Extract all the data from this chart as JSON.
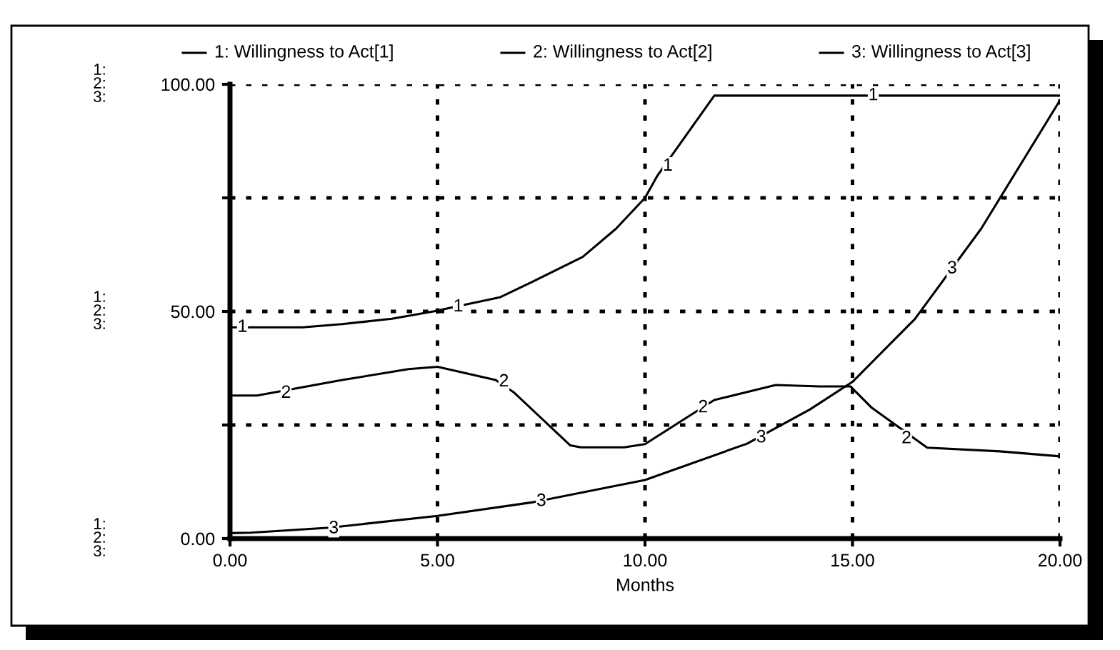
{
  "chart_data": {
    "type": "line",
    "xlabel": "Months",
    "xlim": [
      0,
      20
    ],
    "ylim": [
      0,
      100
    ],
    "xticks": [
      {
        "value": 0,
        "label": "0.00"
      },
      {
        "value": 5,
        "label": "5.00"
      },
      {
        "value": 10,
        "label": "10.00"
      },
      {
        "value": 15,
        "label": "15.00"
      },
      {
        "value": 20,
        "label": "20.00"
      }
    ],
    "yticks": [
      {
        "value": 0,
        "label": "0.00"
      },
      {
        "value": 25,
        "label": null
      },
      {
        "value": 50,
        "label": "50.00"
      },
      {
        "value": 75,
        "label": null
      },
      {
        "value": 100,
        "label": "100.00"
      }
    ],
    "grid": true,
    "legend": "top",
    "marker": "none",
    "line_style": "solid",
    "series": [
      {
        "name": "1: Willingness to Act[1]",
        "color": "#000000",
        "x": [
          0,
          1.75,
          2.7,
          3.9,
          4.9,
          6.5,
          7.3,
          8.5,
          9.3,
          10,
          10.3,
          11.67,
          20
        ],
        "values": [
          46.5,
          46.5,
          47.2,
          48.4,
          50,
          53.1,
          56.6,
          62,
          68.2,
          75,
          79.9,
          97.5,
          97.5
        ]
      },
      {
        "name": "2: Willingness to Act[2]",
        "color": "#000000",
        "x": [
          0,
          0.65,
          2.7,
          4.3,
          5,
          6.4,
          6.85,
          8.2,
          8.45,
          9.5,
          10,
          11.67,
          13.15,
          14.2,
          14.95,
          15.45,
          16.8,
          18.55,
          20
        ],
        "values": [
          31.5,
          31.5,
          34.9,
          37.3,
          37.8,
          34.9,
          32.1,
          20.5,
          20.1,
          20.1,
          20.8,
          30.5,
          33.8,
          33.5,
          33.5,
          28.9,
          20,
          19.2,
          18.1
        ]
      },
      {
        "name": "3: Willingness to Act[3]",
        "color": "#000000",
        "x": [
          0,
          0.5,
          2.4,
          5,
          7.3,
          10,
          12.46,
          13.97,
          15,
          16.5,
          18.1,
          20
        ],
        "values": [
          1.2,
          1.3,
          2.4,
          5,
          8,
          12.9,
          20.9,
          28.4,
          34.5,
          48.3,
          68.2,
          96.5
        ]
      }
    ],
    "annotations": [
      "1:\n2:\n3:",
      "1:\n2:\n3:",
      "1:\n2:\n3:",
      {
        "text": "1",
        "x": 0.3,
        "y": 46.5
      },
      {
        "text": "1",
        "x": 5.5,
        "y": 51
      },
      {
        "text": "1",
        "x": 10.55,
        "y": 82
      },
      {
        "text": "1",
        "x": 15.5,
        "y": 97.5
      },
      {
        "text": "2",
        "x": 1.35,
        "y": 32
      },
      {
        "text": "2",
        "x": 6.6,
        "y": 34.5
      },
      {
        "text": "2",
        "x": 11.4,
        "y": 28.8
      },
      {
        "text": "2",
        "x": 16.3,
        "y": 22
      },
      {
        "text": "3",
        "x": 2.5,
        "y": 2.2
      },
      {
        "text": "3",
        "x": 7.5,
        "y": 8.2
      },
      {
        "text": "3",
        "x": 12.8,
        "y": 22.2
      },
      {
        "text": "3",
        "x": 17.4,
        "y": 59.4
      }
    ]
  }
}
